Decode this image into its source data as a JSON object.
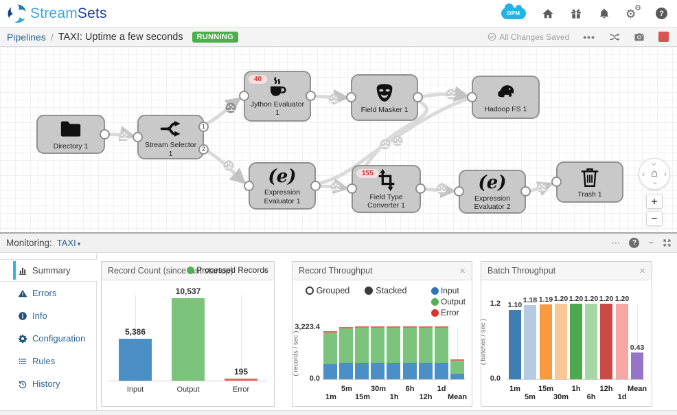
{
  "ui": {
    "close": "×",
    "more": "⋯",
    "minimize": "−",
    "caret": "▾",
    "zoom_in": "+",
    "zoom_out": "−",
    "home_glyph": "⌂",
    "chevron": "›",
    "chevron_l": "‹"
  },
  "header": {
    "brand_stream": "Stream",
    "brand_sets": "Sets",
    "dpm_label": "DPM",
    "icons": [
      "dpm-cloud",
      "home",
      "gift",
      "bell",
      "gears",
      "help"
    ]
  },
  "breadcrumb": {
    "root": "Pipelines",
    "separator": "/",
    "title": "TAXI:  Uptime  a few seconds",
    "status_badge": "RUNNING",
    "saved_text": "All Changes Saved",
    "action_icons": [
      "more",
      "shuffle",
      "camera",
      "stop"
    ]
  },
  "canvas": {
    "nodes": [
      {
        "id": "directory",
        "label": "Directory 1",
        "icon": "folder-icon",
        "has_input": false,
        "has_output": true
      },
      {
        "id": "selector",
        "label": "Stream Selector 1",
        "icon": "branch-arrows-icon",
        "has_input": true,
        "output_labels": [
          "1",
          "2"
        ]
      },
      {
        "id": "jython",
        "label": "Jython Evaluator 1",
        "icon": "coffee-cup-icon",
        "badge": "40",
        "has_input": true,
        "has_output": true
      },
      {
        "id": "masker",
        "label": "Field Masker 1",
        "icon": "mask-icon",
        "has_input": true,
        "has_output": true
      },
      {
        "id": "hadoop",
        "label": "Hadoop FS 1",
        "icon": "elephant-icon",
        "has_input": true,
        "has_output": false
      },
      {
        "id": "expr1",
        "label": "Expression Evaluator 1",
        "icon": "expression-icon",
        "has_input": true,
        "has_output": true
      },
      {
        "id": "ftc",
        "label": "Field Type Converter 1",
        "icon": "type-converter-icon",
        "badge": "155",
        "has_input": true,
        "has_output": true
      },
      {
        "id": "expr2",
        "label": "Expression Evaluator 2",
        "icon": "expression-icon",
        "has_input": true,
        "has_output": true
      },
      {
        "id": "trash",
        "label": "Trash 1",
        "icon": "trash-icon",
        "has_input": true,
        "has_output": false
      }
    ]
  },
  "monitoring": {
    "label": "Monitoring:",
    "selected_pipeline": "TAXI"
  },
  "sidebar": {
    "items": [
      {
        "id": "summary",
        "label": "Summary",
        "icon": "bar-chart-icon",
        "active": true
      },
      {
        "id": "errors",
        "label": "Errors",
        "icon": "warning-icon",
        "active": false
      },
      {
        "id": "info",
        "label": "Info",
        "icon": "info-icon",
        "active": false
      },
      {
        "id": "configuration",
        "label": "Configuration",
        "icon": "gear-icon",
        "active": false
      },
      {
        "id": "rules",
        "label": "Rules",
        "icon": "list-icon",
        "active": false
      },
      {
        "id": "history",
        "label": "History",
        "icon": "history-icon",
        "active": false
      }
    ]
  },
  "chart_data": [
    {
      "type": "bar",
      "title": "Record Count (since last startup)",
      "legend": [
        {
          "label": "Processed Records",
          "color": "#52b152"
        }
      ],
      "categories": [
        "Input",
        "Output",
        "Error"
      ],
      "values": [
        5386,
        10537,
        195
      ],
      "value_labels": [
        "5,386",
        "10,537",
        "195"
      ],
      "colors": [
        "#4a90c6",
        "#7cc47c",
        "#e9665e"
      ],
      "ylim": [
        0,
        10537
      ],
      "grid": true
    },
    {
      "type": "stacked-bar",
      "title": "Record Throughput",
      "controls": [
        {
          "label": "Grouped",
          "selected": false
        },
        {
          "label": "Stacked",
          "selected": true
        }
      ],
      "legend": [
        {
          "label": "Input",
          "color": "#2e75b6"
        },
        {
          "label": "Output",
          "color": "#52b152"
        },
        {
          "label": "Error",
          "color": "#e03131"
        }
      ],
      "ylabel": "( records / sec )",
      "ytick_labels": [
        "3,223.4",
        "0.0"
      ],
      "ylim": [
        0,
        3223.4
      ],
      "categories": [
        "1m",
        "5m",
        "15m",
        "30m",
        "1h",
        "6h",
        "12h",
        "1d",
        "Mean"
      ],
      "series": [
        {
          "name": "Input",
          "color": "#4a90c6",
          "values": [
            950,
            1010,
            1010,
            1015,
            1015,
            1015,
            1015,
            1015,
            330
          ]
        },
        {
          "name": "Output",
          "color": "#7cc47c",
          "values": [
            1950,
            2120,
            2150,
            2165,
            2165,
            2165,
            2165,
            2165,
            790
          ]
        },
        {
          "name": "Error",
          "color": "#e9665e",
          "values": [
            45,
            50,
            50,
            48,
            48,
            48,
            48,
            48,
            25
          ]
        }
      ],
      "grid": true
    },
    {
      "type": "bar",
      "title": "Batch Throughput",
      "ylabel": "( batches / sec )",
      "ytick_labels": [
        "1.2",
        "0.0"
      ],
      "ylim": [
        0,
        1.2
      ],
      "categories": [
        "1m",
        "5m",
        "15m",
        "30m",
        "1h",
        "6h",
        "12h",
        "1d",
        "Mean"
      ],
      "values": [
        1.1,
        1.18,
        1.19,
        1.2,
        1.2,
        1.2,
        1.2,
        1.2,
        0.43
      ],
      "value_labels": [
        "1.10",
        "1.18",
        "1.19",
        "1.20",
        "1.20",
        "1.20",
        "1.20",
        "1.20",
        "0.43"
      ],
      "colors": [
        "#3d7eb5",
        "#b5cbe3",
        "#f79b3e",
        "#f9c795",
        "#4ea84e",
        "#a5d7a5",
        "#ca4a47",
        "#f6a7a4",
        "#9576c6"
      ],
      "grid": true
    }
  ]
}
